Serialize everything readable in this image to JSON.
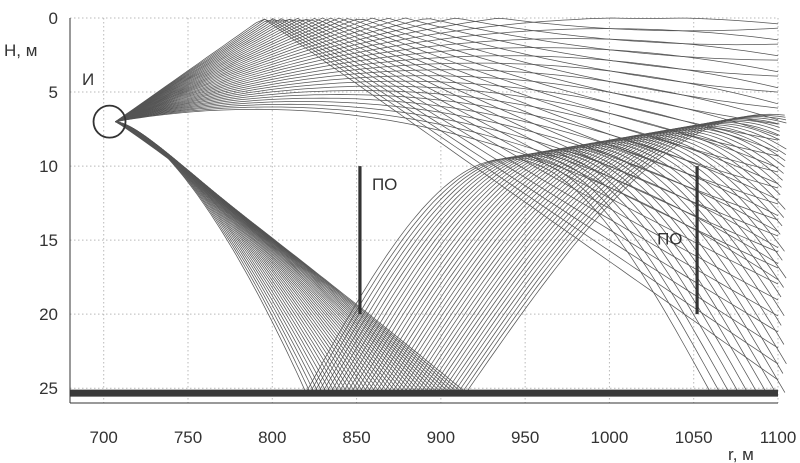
{
  "chart_data": {
    "type": "line",
    "title": "",
    "xlabel": "r, м",
    "ylabel": "H, м",
    "xlim": [
      680,
      1100
    ],
    "ylim": [
      0,
      26
    ],
    "y_inverted": true,
    "grid": true,
    "x_ticks": [
      "700",
      "750",
      "800",
      "850",
      "900",
      "950",
      "1000",
      "1050",
      "1100"
    ],
    "y_ticks": [
      "0",
      "5",
      "10",
      "15",
      "20",
      "25"
    ],
    "source": {
      "label": "И",
      "r": 707,
      "H": 7
    },
    "receivers": [
      {
        "label": "ПО",
        "r": 852,
        "H_top": 10,
        "H_bottom": 20
      },
      {
        "label": "ПО",
        "r": 1052,
        "H_top": 10,
        "H_bottom": 20
      }
    ],
    "bottom": {
      "H": 25.3
    },
    "ray_fan": {
      "count": 40,
      "first_turning_depth_bottom_range": [
        820,
        915
      ],
      "surface_turning_depth_range": [
        6.5,
        9.5
      ]
    },
    "colors": {
      "ray": "#555555",
      "axis": "#333333",
      "receiver": "#333333",
      "bottom": "#3a3a3a"
    }
  }
}
